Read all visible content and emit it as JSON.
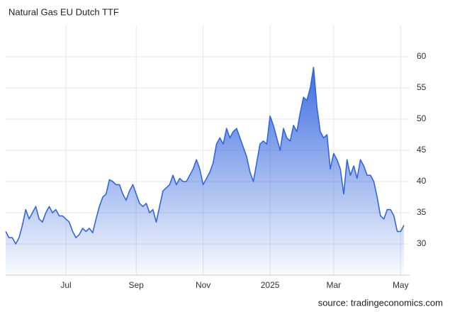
{
  "chart_data": {
    "type": "line",
    "title": "Natural Gas EU Dutch TTF",
    "source": "source: tradingeconomics.com",
    "categories": [
      null,
      null,
      null,
      null,
      null,
      null,
      null,
      null,
      null,
      null,
      null,
      null,
      null,
      null,
      null,
      null,
      null,
      null,
      "Jul",
      null,
      null,
      null,
      null,
      null,
      null,
      null,
      null,
      null,
      null,
      null,
      null,
      null,
      null,
      null,
      null,
      null,
      null,
      null,
      null,
      "Sep",
      null,
      null,
      null,
      null,
      null,
      null,
      null,
      null,
      null,
      null,
      null,
      null,
      null,
      null,
      null,
      null,
      null,
      null,
      null,
      "Nov",
      null,
      null,
      null,
      null,
      null,
      null,
      null,
      null,
      null,
      null,
      null,
      null,
      null,
      null,
      null,
      null,
      null,
      null,
      null,
      "2025",
      null,
      null,
      null,
      null,
      null,
      null,
      null,
      null,
      null,
      null,
      null,
      null,
      null,
      null,
      null,
      null,
      null,
      null,
      "Mar",
      null,
      null,
      null,
      null,
      null,
      null,
      null,
      null,
      null,
      null,
      null,
      null,
      null,
      null,
      null,
      null,
      null,
      null,
      null,
      "May",
      null
    ],
    "series": [
      {
        "name": "TTF",
        "color": "#3366dd",
        "values": [
          32,
          31,
          31,
          30,
          31,
          33,
          35.5,
          34,
          35,
          36,
          34,
          33.5,
          35,
          36,
          35,
          35.5,
          34.5,
          34.5,
          34,
          33.5,
          32,
          31,
          31.5,
          32.5,
          32,
          32.5,
          31.8,
          34,
          36,
          37.5,
          38,
          40.3,
          40,
          39.5,
          39.5,
          38,
          37,
          38.5,
          39.5,
          38,
          36.5,
          36,
          36.5,
          35,
          35.5,
          33.5,
          36,
          38.5,
          39,
          39.5,
          41,
          39.5,
          40.5,
          40,
          40,
          41,
          42,
          43.5,
          42,
          39.5,
          40.5,
          41.5,
          43,
          46,
          47,
          46,
          48.5,
          47,
          48,
          48.5,
          47,
          45.5,
          44,
          41.5,
          40,
          43,
          46,
          46.5,
          46,
          50.5,
          49,
          47,
          45,
          48.5,
          47,
          46.5,
          49,
          48,
          51,
          53.5,
          53,
          55,
          58.3,
          52,
          48,
          47,
          47.5,
          42,
          44.5,
          43.5,
          42,
          38,
          43.5,
          41,
          42.5,
          40.5,
          43.5,
          42.5,
          41,
          41,
          40,
          37.5,
          34.5,
          34,
          35.5,
          35.5,
          34.5,
          32,
          32,
          33
        ]
      }
    ],
    "ylim": [
      25,
      65
    ],
    "yticks": [
      30,
      35,
      40,
      45,
      50,
      55,
      60
    ],
    "grid": true
  }
}
